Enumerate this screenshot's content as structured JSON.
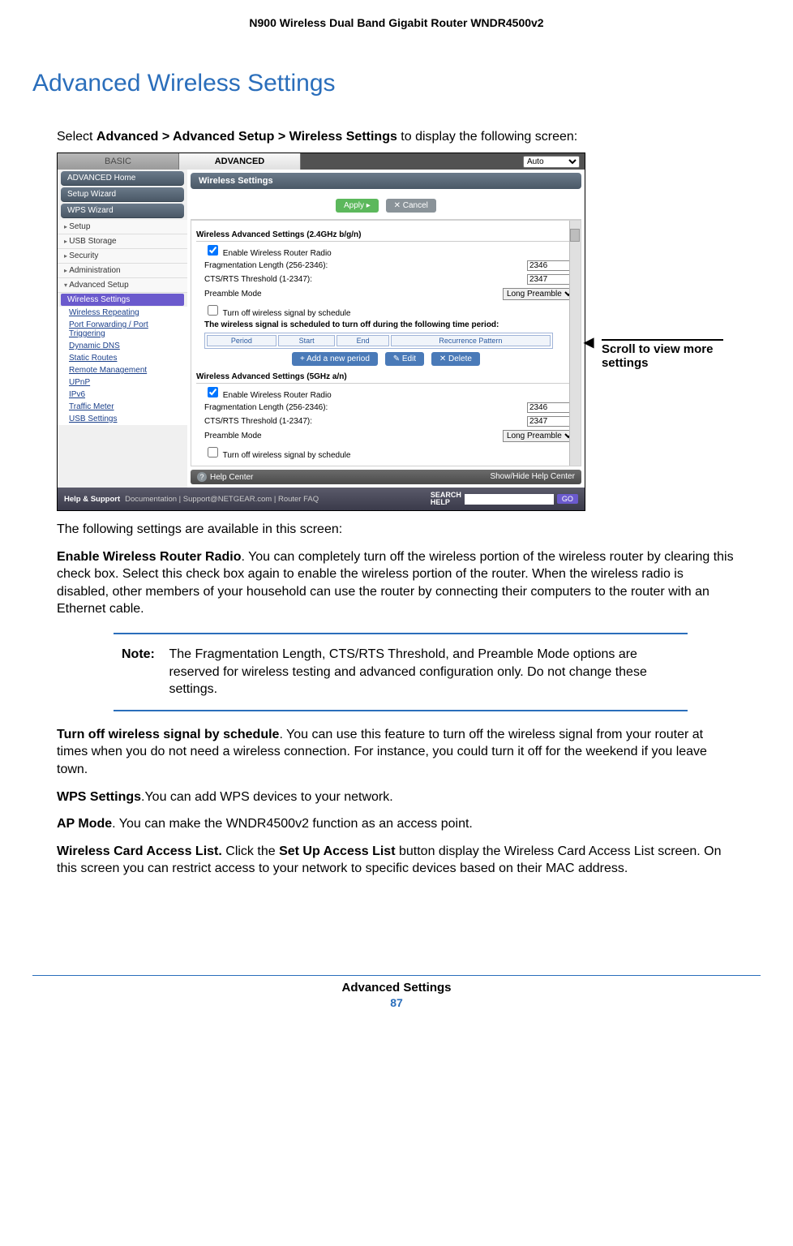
{
  "doc": {
    "header": "N900 Wireless Dual Band Gigabit Router WNDR4500v2",
    "title": "Advanced Wireless Settings",
    "intro_prefix": "Select ",
    "intro_path": "Advanced > Advanced Setup > Wireless Settings",
    "intro_suffix": " to display the following screen:",
    "callout": "Scroll to view more settings",
    "footer_name": "Advanced Settings",
    "page_number": "87"
  },
  "ss": {
    "tabs": {
      "basic": "BASIC",
      "advanced": "ADVANCED",
      "auto": "Auto"
    },
    "side_buttons": [
      "ADVANCED Home",
      "Setup Wizard",
      "WPS Wizard"
    ],
    "side_items": [
      "Setup",
      "USB Storage",
      "Security",
      "Administration"
    ],
    "side_open": "Advanced Setup",
    "side_subs": [
      "Wireless Settings",
      "Wireless Repeating",
      "Port Forwarding / Port Triggering",
      "Dynamic DNS",
      "Static Routes",
      "Remote Management",
      "UPnP",
      "IPv6",
      "Traffic Meter",
      "USB Settings"
    ],
    "panel_title": "Wireless Settings",
    "btn_apply": "Apply ▸",
    "btn_cancel": "✕ Cancel",
    "sect24": "Wireless Advanced Settings (2.4GHz b/g/n)",
    "sect5": "Wireless Advanced Settings (5GHz a/n)",
    "chk_enable": "Enable Wireless Router Radio",
    "row_frag": "Fragmentation Length (256-2346):",
    "val_frag": "2346",
    "row_cts": "CTS/RTS Threshold (1-2347):",
    "val_cts": "2347",
    "row_preamble": "Preamble Mode",
    "val_preamble": "Long Preamble",
    "chk_sched": "Turn off wireless signal by schedule",
    "sched_note": "The wireless signal is scheduled to turn off during the following time period:",
    "th_period": "Period",
    "th_start": "Start",
    "th_end": "End",
    "th_rec": "Recurrence Pattern",
    "btn_add": "+ Add a new period",
    "btn_edit": "✎ Edit",
    "btn_del": "✕ Delete",
    "help_center": "Help Center",
    "help_toggle": "Show/Hide Help Center",
    "footer_label": "Help & Support",
    "footer_links": "Documentation | Support@NETGEAR.com | Router FAQ",
    "search": "SEARCH",
    "help": "HELP",
    "go": "GO"
  },
  "body": {
    "p1": "The following settings are available in this screen:",
    "p2a": "Enable Wireless Router Radio",
    "p2b": ". You can completely turn off the wireless portion of the wireless router by clearing this check box. Select this check box again to enable the wireless portion of the router. When the wireless radio is disabled, other members of your household can use the router by connecting their computers to the router with an Ethernet cable.",
    "note_label": "Note:",
    "note_body": "The Fragmentation Length, CTS/RTS Threshold, and Preamble Mode options are reserved for wireless testing and advanced configuration only. Do not change these settings.",
    "p3a": "Turn off wireless signal by schedule",
    "p3b": ". You can use this feature to turn off the wireless signal from your router at times when you do not need a wireless connection. For instance, you could turn it off for the weekend if you leave town.",
    "p4a": "WPS Settings",
    "p4b": ".You can add WPS devices to your network.",
    "p5a": "AP Mode",
    "p5b": ". You can make the WNDR4500v2 function as an access point.",
    "p6a": "Wireless Card Access List.",
    "p6b": " Click the ",
    "p6c": "Set Up Access List",
    "p6d": " button display the Wireless Card Access List screen. On this screen you can restrict access to your network to specific devices based on their MAC address."
  }
}
